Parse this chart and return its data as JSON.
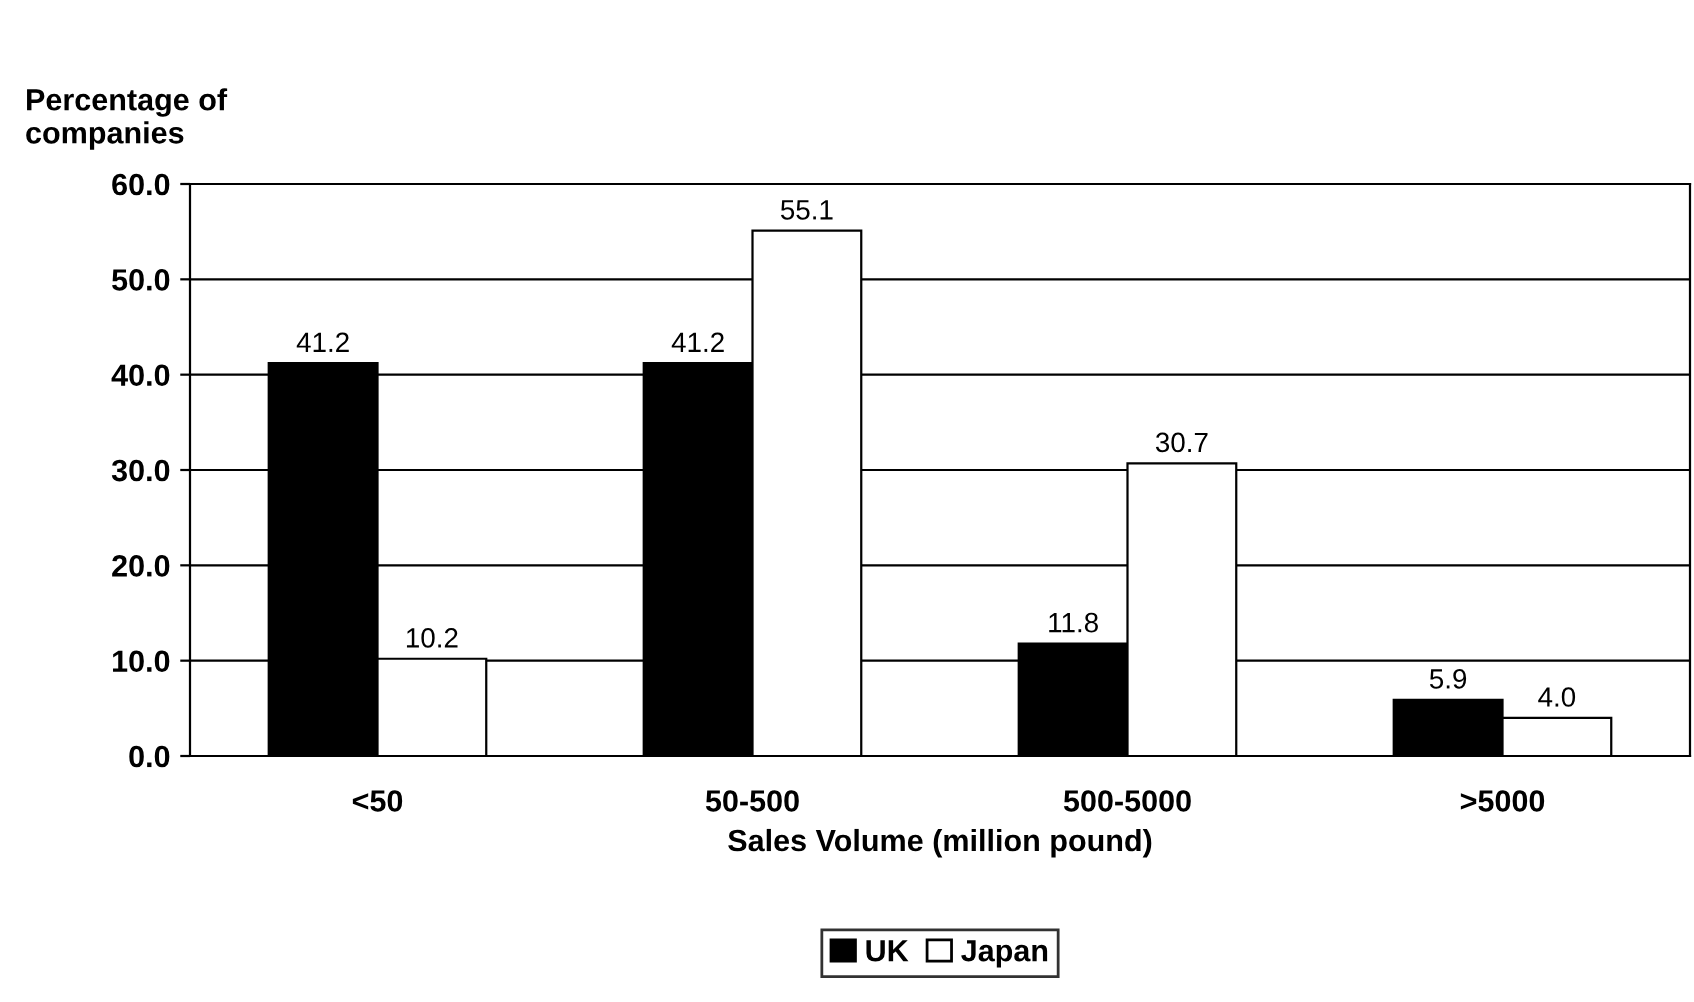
{
  "chart_data": {
    "type": "bar",
    "ylabel": "Percentage of\ncompanies",
    "xlabel": "Sales Volume (million pound)",
    "categories": [
      "<50",
      "50-500",
      "500-5000",
      ">5000"
    ],
    "series": [
      {
        "name": "UK",
        "color": "#000000",
        "values": [
          41.2,
          41.2,
          11.8,
          5.9
        ],
        "value_labels": [
          "41.2",
          "41.2",
          "11.8",
          "5.9"
        ]
      },
      {
        "name": "Japan",
        "color": "#ffffff",
        "values": [
          10.2,
          55.1,
          30.7,
          4.0
        ],
        "value_labels": [
          "10.2",
          "55.1",
          "30.7",
          "4.0"
        ]
      }
    ],
    "ylim": [
      0,
      60
    ],
    "yticks": [
      {
        "value": 0,
        "label": "0.0"
      },
      {
        "value": 10,
        "label": "10.0"
      },
      {
        "value": 20,
        "label": "20.0"
      },
      {
        "value": 30,
        "label": "30.0"
      },
      {
        "value": 40,
        "label": "40.0"
      },
      {
        "value": 50,
        "label": "50.0"
      },
      {
        "value": 60,
        "label": "60.0"
      }
    ],
    "grid": "y",
    "legend": "bottom"
  }
}
